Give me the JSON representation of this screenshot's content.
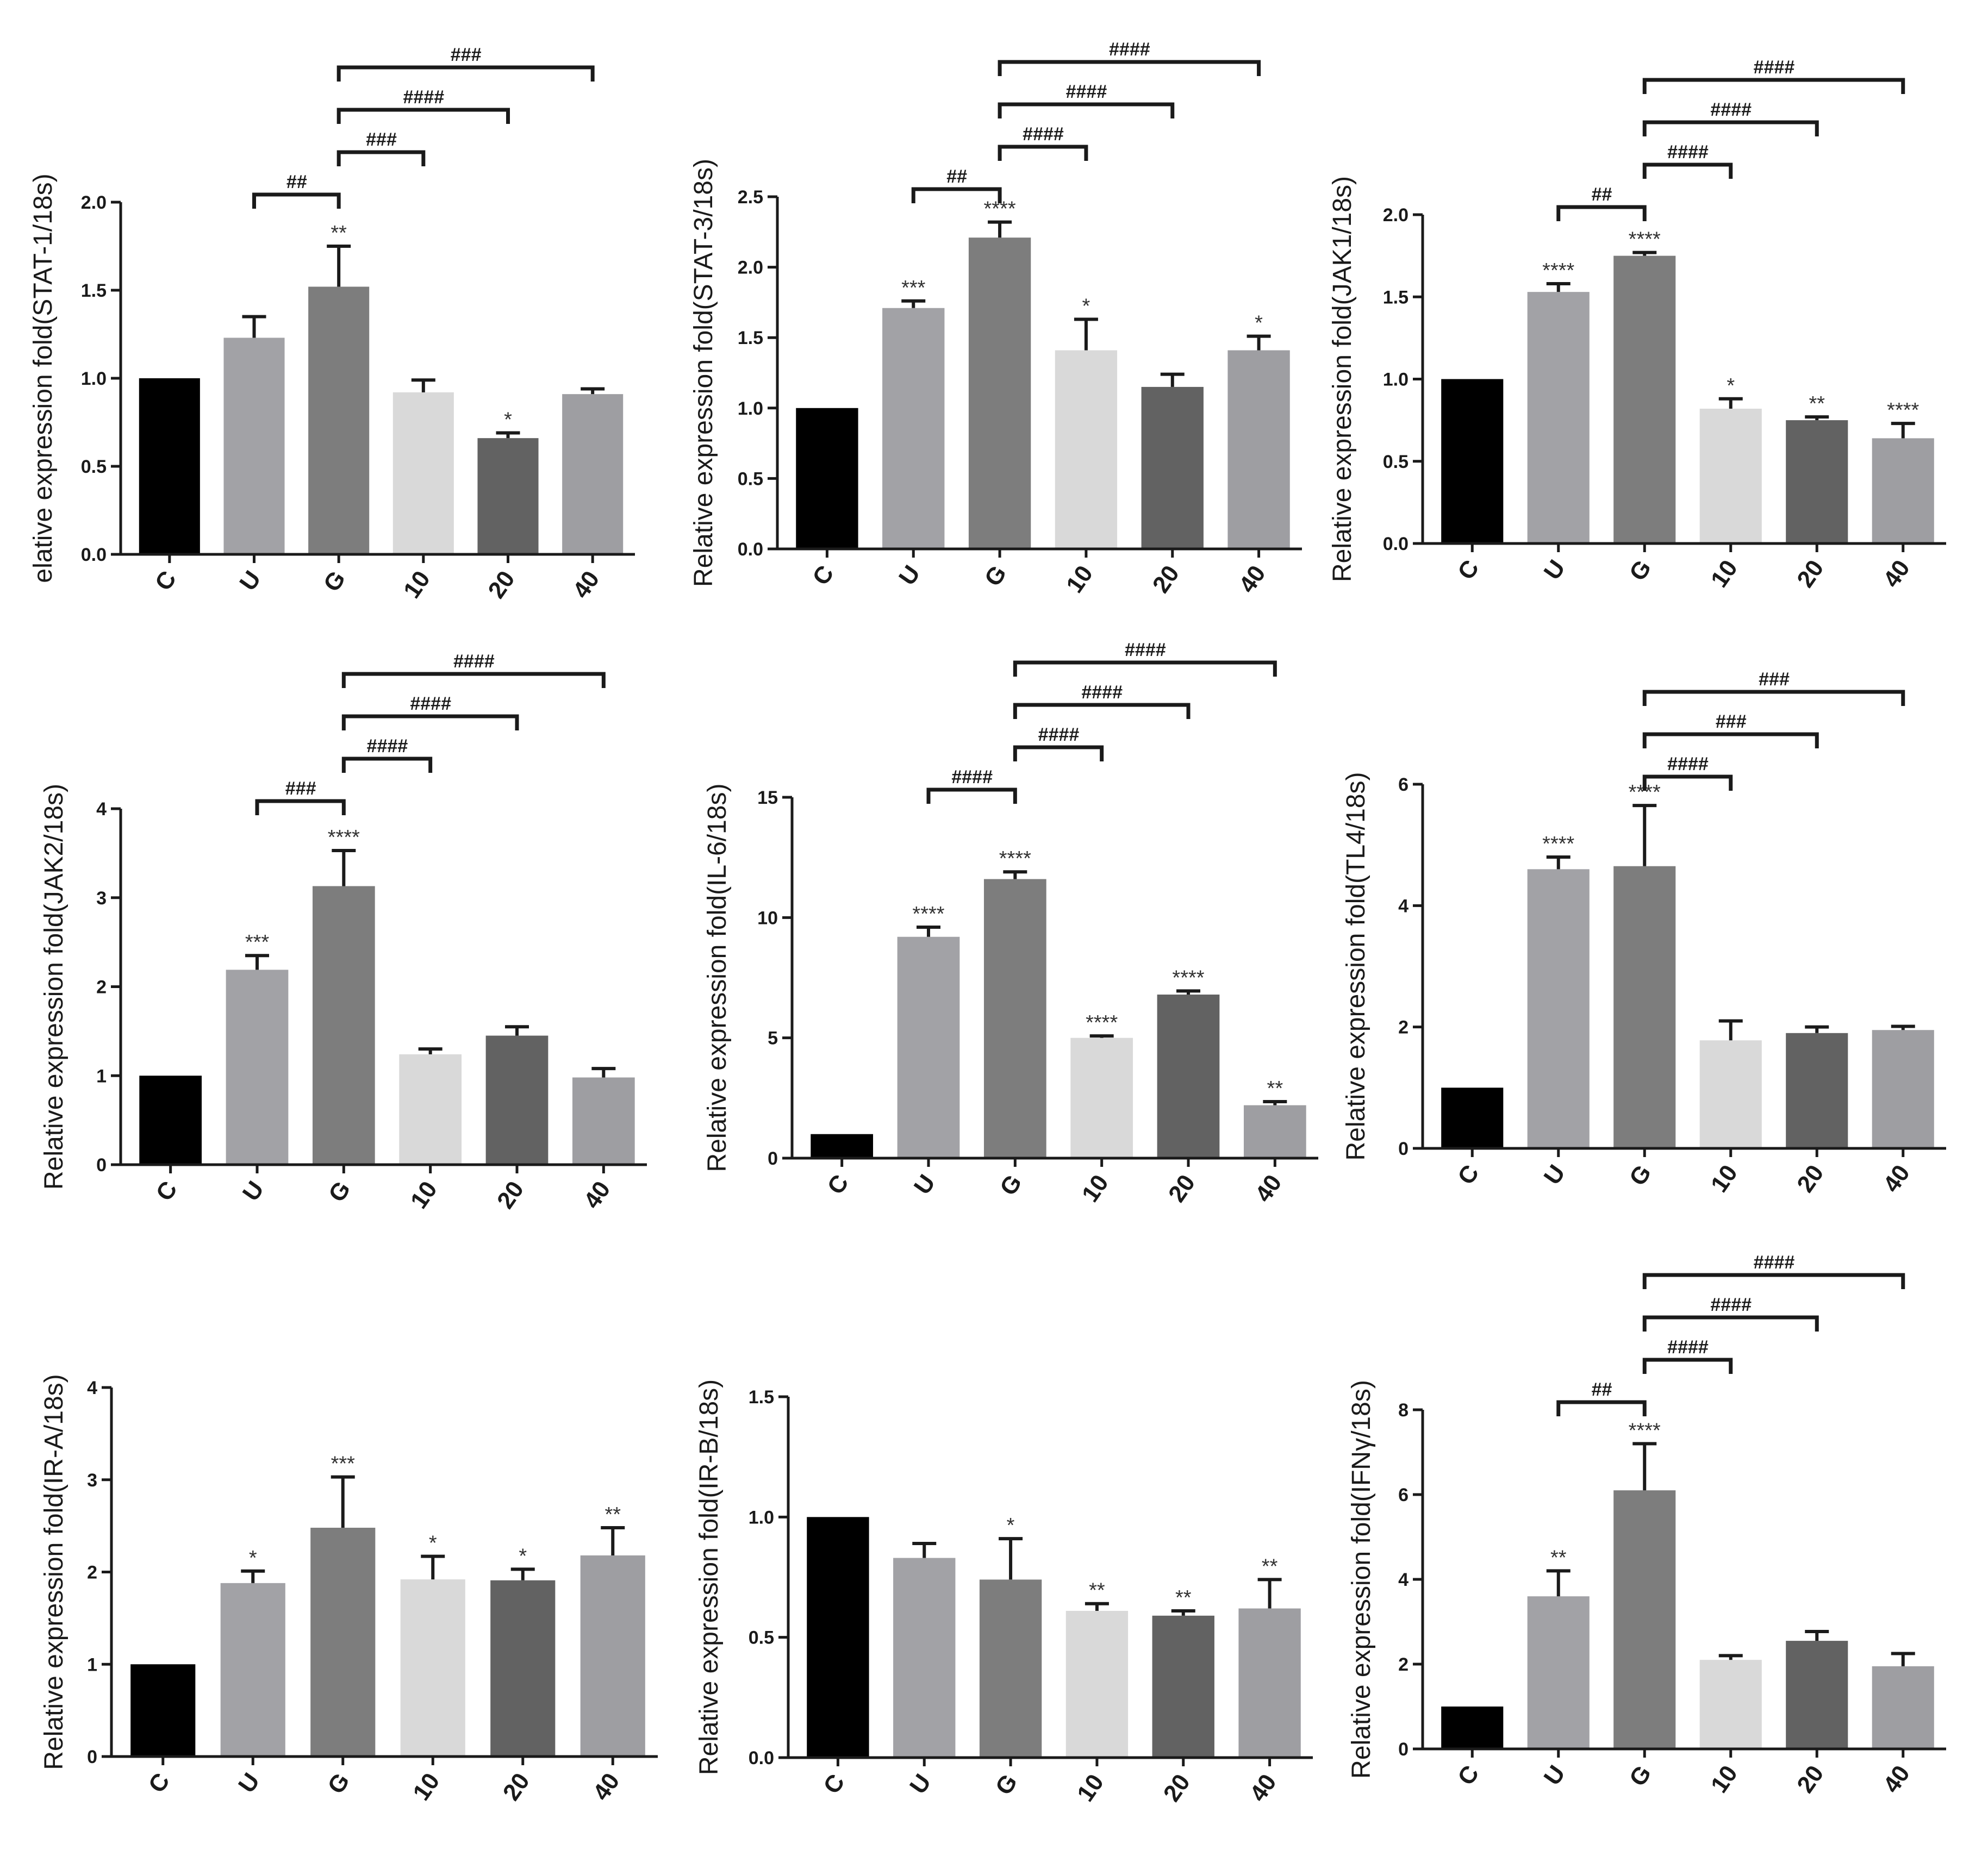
{
  "chart_data": [
    {
      "type": "bar",
      "ylabel": "elative expression fold(STAT-1/18s)",
      "categories": [
        "C",
        "U",
        "G",
        "10",
        "20",
        "40"
      ],
      "values": [
        1.0,
        1.23,
        1.52,
        0.92,
        0.66,
        0.91
      ],
      "errors": [
        0,
        0.12,
        0.23,
        0.07,
        0.03,
        0.03
      ],
      "stars": [
        "",
        "",
        "**",
        "",
        "*",
        ""
      ],
      "ylim": [
        0,
        2.0
      ],
      "yticks": [
        "0.0",
        "0.5",
        "1.0",
        "1.5",
        "2.0"
      ],
      "brackets": [
        {
          "from": 1,
          "to": 2,
          "label": "##"
        },
        {
          "from": 2,
          "to": 3,
          "label": "###"
        },
        {
          "from": 2,
          "to": 4,
          "label": "####"
        },
        {
          "from": 2,
          "to": 5,
          "label": "###"
        }
      ]
    },
    {
      "type": "bar",
      "ylabel": "Relative expression fold(STAT-3/18s)",
      "categories": [
        "C",
        "U",
        "G",
        "10",
        "20",
        "40"
      ],
      "values": [
        1.0,
        1.71,
        2.21,
        1.41,
        1.15,
        1.41
      ],
      "errors": [
        0,
        0.05,
        0.11,
        0.22,
        0.09,
        0.1
      ],
      "stars": [
        "",
        "***",
        "****",
        "*",
        "",
        "*"
      ],
      "ylim": [
        0,
        2.5
      ],
      "yticks": [
        "0.0",
        "0.5",
        "1.0",
        "1.5",
        "2.0",
        "2.5"
      ],
      "brackets": [
        {
          "from": 1,
          "to": 2,
          "label": "##"
        },
        {
          "from": 2,
          "to": 3,
          "label": "####"
        },
        {
          "from": 2,
          "to": 4,
          "label": "####"
        },
        {
          "from": 2,
          "to": 5,
          "label": "####"
        }
      ]
    },
    {
      "type": "bar",
      "ylabel": "Relative expression fold(JAK1/18s)",
      "categories": [
        "C",
        "U",
        "G",
        "10",
        "20",
        "40"
      ],
      "values": [
        1.0,
        1.53,
        1.75,
        0.82,
        0.75,
        0.64
      ],
      "errors": [
        0,
        0.05,
        0.02,
        0.06,
        0.02,
        0.09
      ],
      "stars": [
        "",
        "****",
        "****",
        "*",
        "**",
        "****"
      ],
      "ylim": [
        0,
        2.0
      ],
      "yticks": [
        "0.0",
        "0.5",
        "1.0",
        "1.5",
        "2.0"
      ],
      "brackets": [
        {
          "from": 1,
          "to": 2,
          "label": "##"
        },
        {
          "from": 2,
          "to": 3,
          "label": "####"
        },
        {
          "from": 2,
          "to": 4,
          "label": "####"
        },
        {
          "from": 2,
          "to": 5,
          "label": "####"
        }
      ]
    },
    {
      "type": "bar",
      "ylabel": "Relative expression fold(JAK2/18s)",
      "categories": [
        "C",
        "U",
        "G",
        "10",
        "20",
        "40"
      ],
      "values": [
        1.0,
        2.19,
        3.13,
        1.24,
        1.45,
        0.98
      ],
      "errors": [
        0,
        0.16,
        0.4,
        0.06,
        0.1,
        0.1
      ],
      "stars": [
        "",
        "***",
        "****",
        "",
        "",
        ""
      ],
      "ylim": [
        0,
        4
      ],
      "yticks": [
        "0",
        "1",
        "2",
        "3",
        "4"
      ],
      "brackets": [
        {
          "from": 1,
          "to": 2,
          "label": "###"
        },
        {
          "from": 2,
          "to": 3,
          "label": "####"
        },
        {
          "from": 2,
          "to": 4,
          "label": "####"
        },
        {
          "from": 2,
          "to": 5,
          "label": "####"
        }
      ]
    },
    {
      "type": "bar",
      "ylabel": "Relative expression fold(IL-6/18s)",
      "categories": [
        "C",
        "U",
        "G",
        "10",
        "20",
        "40"
      ],
      "values": [
        1.0,
        9.2,
        11.6,
        5.0,
        6.8,
        2.2
      ],
      "errors": [
        0,
        0.4,
        0.3,
        0.08,
        0.15,
        0.15
      ],
      "stars": [
        "",
        "****",
        "****",
        "****",
        "****",
        "**"
      ],
      "ylim": [
        0,
        15
      ],
      "yticks": [
        "0",
        "5",
        "10",
        "15"
      ],
      "brackets": [
        {
          "from": 1,
          "to": 2,
          "label": "####"
        },
        {
          "from": 2,
          "to": 3,
          "label": "####"
        },
        {
          "from": 2,
          "to": 4,
          "label": "####"
        },
        {
          "from": 2,
          "to": 5,
          "label": "####"
        }
      ]
    },
    {
      "type": "bar",
      "ylabel": "Relative expression fold(TL4/18s)",
      "categories": [
        "C",
        "U",
        "G",
        "10",
        "20",
        "40"
      ],
      "values": [
        1.0,
        4.6,
        4.65,
        1.78,
        1.9,
        1.95
      ],
      "errors": [
        0,
        0.2,
        1.0,
        0.32,
        0.1,
        0.06
      ],
      "stars": [
        "",
        "****",
        "****",
        "",
        "",
        ""
      ],
      "ylim": [
        0,
        6
      ],
      "yticks": [
        "0",
        "2",
        "4",
        "6"
      ],
      "brackets": [
        {
          "from": 2,
          "to": 3,
          "label": "####"
        },
        {
          "from": 2,
          "to": 4,
          "label": "###"
        },
        {
          "from": 2,
          "to": 5,
          "label": "###"
        }
      ]
    },
    {
      "type": "bar",
      "ylabel": "Relative expression fold(IR-A/18s)",
      "categories": [
        "C",
        "U",
        "G",
        "10",
        "20",
        "40"
      ],
      "values": [
        1.0,
        1.88,
        2.48,
        1.92,
        1.91,
        2.18
      ],
      "errors": [
        0,
        0.13,
        0.55,
        0.25,
        0.12,
        0.3
      ],
      "stars": [
        "",
        "*",
        "***",
        "*",
        "*",
        "**"
      ],
      "ylim": [
        0,
        4
      ],
      "yticks": [
        "0",
        "1",
        "2",
        "3",
        "4"
      ],
      "brackets": []
    },
    {
      "type": "bar",
      "ylabel": "Relative expression fold(IR-B/18s)",
      "categories": [
        "C",
        "U",
        "G",
        "10",
        "20",
        "40"
      ],
      "values": [
        1.0,
        0.83,
        0.74,
        0.61,
        0.59,
        0.62
      ],
      "errors": [
        0,
        0.06,
        0.17,
        0.03,
        0.02,
        0.12
      ],
      "stars": [
        "",
        "",
        "*",
        "**",
        "**",
        "**"
      ],
      "ylim": [
        0,
        1.5
      ],
      "yticks": [
        "0.0",
        "0.5",
        "1.0",
        "1.5"
      ],
      "brackets": []
    },
    {
      "type": "bar",
      "ylabel": "Relative expression fold(IFNγ/18s)",
      "categories": [
        "C",
        "U",
        "G",
        "10",
        "20",
        "40"
      ],
      "values": [
        1.0,
        3.6,
        6.1,
        2.1,
        2.55,
        1.95
      ],
      "errors": [
        0,
        0.6,
        1.1,
        0.1,
        0.22,
        0.3
      ],
      "stars": [
        "",
        "**",
        "****",
        "",
        "",
        ""
      ],
      "ylim": [
        0,
        8
      ],
      "yticks": [
        "0",
        "2",
        "4",
        "6",
        "8"
      ],
      "brackets": [
        {
          "from": 1,
          "to": 2,
          "label": "##"
        },
        {
          "from": 2,
          "to": 3,
          "label": "####"
        },
        {
          "from": 2,
          "to": 4,
          "label": "####"
        },
        {
          "from": 2,
          "to": 5,
          "label": "####"
        }
      ]
    }
  ],
  "colors": {
    "bars": [
      "#000000",
      "#a2a2a6",
      "#7d7d7d",
      "#d9d9d9",
      "#626262",
      "#9e9ea2"
    ],
    "axis": "#1a1a1a"
  }
}
